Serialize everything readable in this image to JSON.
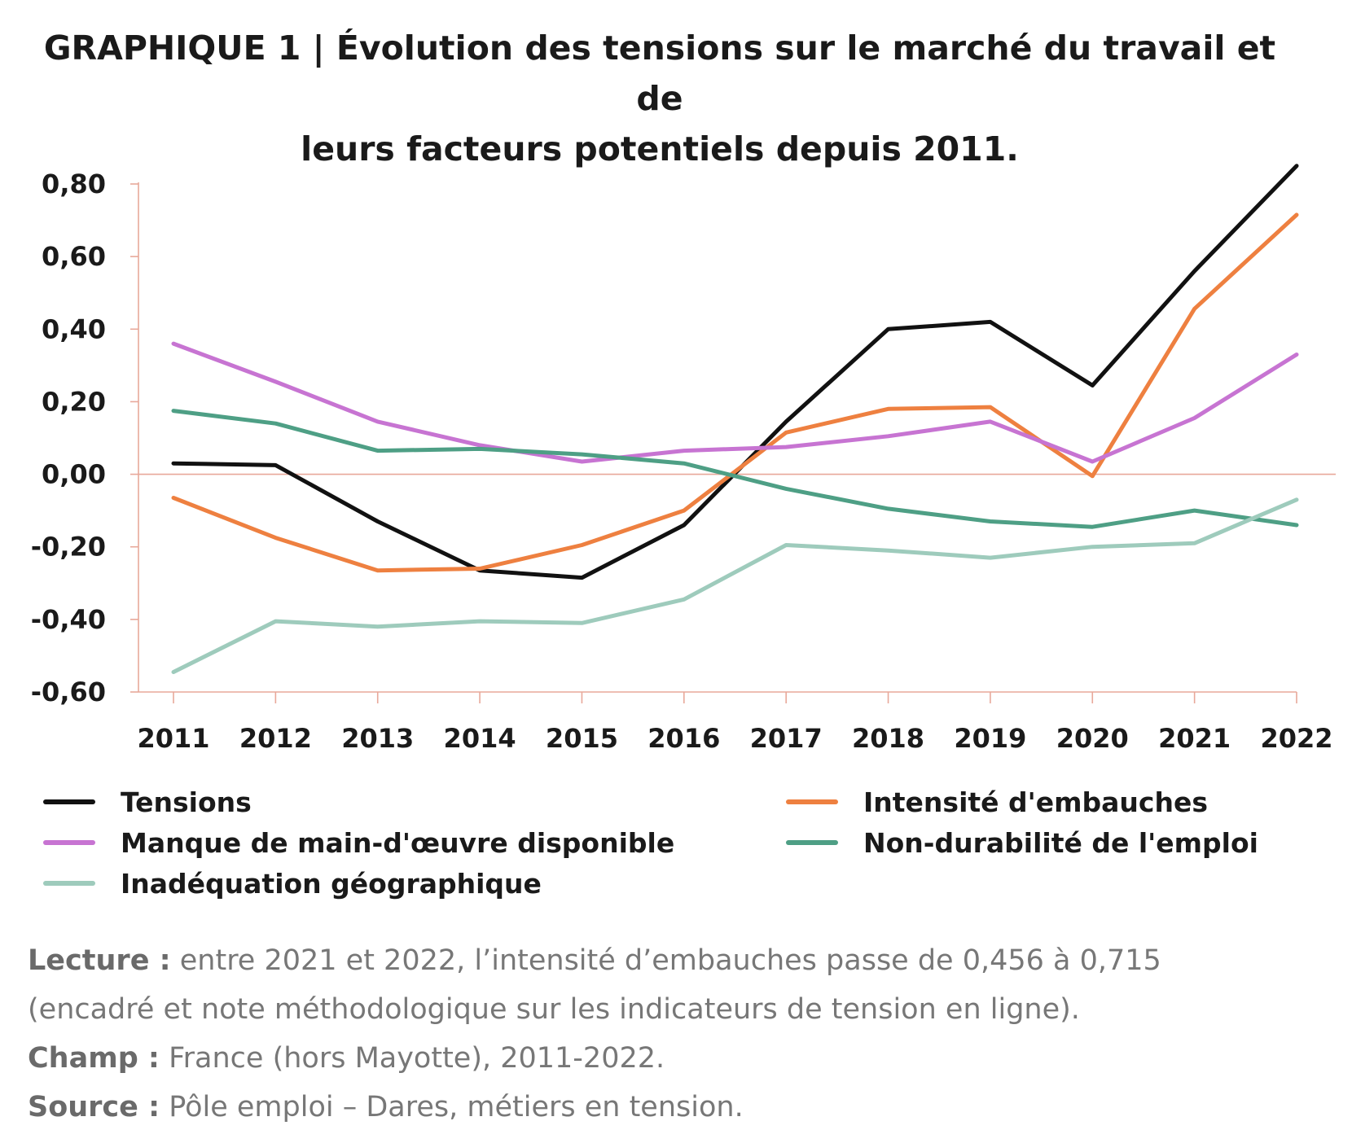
{
  "title": {
    "line1": "GRAPHIQUE 1 | Évolution des tensions sur le marché du travail et de",
    "line2": "leurs facteurs potentiels depuis 2011."
  },
  "chart_data": {
    "type": "line",
    "x": [
      "2011",
      "2012",
      "2013",
      "2014",
      "2015",
      "2016",
      "2017",
      "2018",
      "2019",
      "2020",
      "2021",
      "2022"
    ],
    "ylim": [
      -0.6,
      0.8
    ],
    "yticks": [
      0.8,
      0.6,
      0.4,
      0.2,
      0.0,
      -0.2,
      -0.4,
      -0.6
    ],
    "ytick_labels": [
      "0,80",
      "0,60",
      "0,40",
      "0,20",
      "0,00",
      "-0,20",
      "-0,40",
      "-0,60"
    ],
    "zero_line": true,
    "legend_position": "bottom",
    "series": [
      {
        "name": "Tensions",
        "color": "#111111",
        "values": [
          0.03,
          0.025,
          -0.13,
          -0.265,
          -0.285,
          -0.14,
          0.145,
          0.4,
          0.42,
          0.245,
          0.56,
          0.85
        ]
      },
      {
        "name": "Intensité d'embauches",
        "color": "#ee8040",
        "values": [
          -0.065,
          -0.175,
          -0.265,
          -0.26,
          -0.195,
          -0.1,
          0.115,
          0.18,
          0.185,
          -0.005,
          0.456,
          0.715
        ]
      },
      {
        "name": "Manque de main-d'œuvre disponible",
        "color": "#c774d2",
        "values": [
          0.36,
          0.255,
          0.145,
          0.08,
          0.035,
          0.065,
          0.075,
          0.105,
          0.145,
          0.035,
          0.155,
          0.33
        ]
      },
      {
        "name": "Non-durabilité de l'emploi",
        "color": "#4e9f85",
        "values": [
          0.175,
          0.14,
          0.065,
          0.07,
          0.055,
          0.03,
          -0.04,
          -0.095,
          -0.13,
          -0.145,
          -0.1,
          -0.14
        ]
      },
      {
        "name": "Inadéquation géographique",
        "color": "#9ecbbc",
        "values": [
          -0.545,
          -0.405,
          -0.42,
          -0.405,
          -0.41,
          -0.345,
          -0.195,
          -0.21,
          -0.23,
          -0.2,
          -0.19,
          -0.07
        ]
      }
    ]
  },
  "notes": {
    "lecture_label": "Lecture :",
    "lecture_text1": " entre 2021 et 2022, l’intensité d’embauches passe de 0,456 à 0,715",
    "lecture_text2": "(encadré et note méthodologique sur les indicateurs de tension en ligne).",
    "champ_label": "Champ :",
    "champ_text": " France (hors Mayotte), 2011-2022.",
    "source_label": "Source :",
    "source_text": " Pôle emploi – Dares, métiers en tension."
  }
}
